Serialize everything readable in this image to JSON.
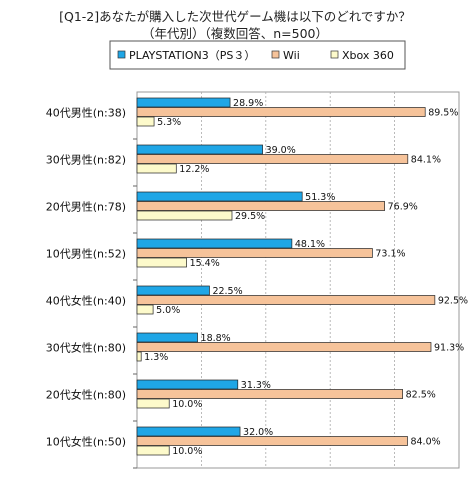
{
  "chart_data": {
    "type": "bar",
    "orientation": "horizontal",
    "title": "[Q1-2]あなたが購入した次世代ゲーム機は以下のどれですか？",
    "subtitle": "（年代別）（複数回答、n=500）",
    "categories": [
      "40代男性(n:38)",
      "30代男性(n:82)",
      "20代男性(n:78)",
      "10代男性(n:52)",
      "40代女性(n:40)",
      "30代女性(n:80)",
      "20代女性(n:80)",
      "10代女性(n:50)"
    ],
    "series": [
      {
        "name": "PLAYSTATION3（PS３）",
        "color": "#1fa6e6",
        "values": [
          28.9,
          39.0,
          51.3,
          48.1,
          22.5,
          18.8,
          31.3,
          32.0
        ]
      },
      {
        "name": "Wii",
        "color": "#f6c39a",
        "values": [
          89.5,
          84.1,
          76.9,
          73.1,
          92.5,
          91.3,
          82.5,
          84.0
        ]
      },
      {
        "name": "Xbox 360",
        "color": "#fdfacb",
        "values": [
          5.3,
          12.2,
          29.5,
          15.4,
          5.0,
          1.3,
          10.0,
          10.0
        ]
      }
    ],
    "value_suffix": "%",
    "xlim": [
      0,
      100
    ],
    "grid": true,
    "legend_position": "top"
  }
}
